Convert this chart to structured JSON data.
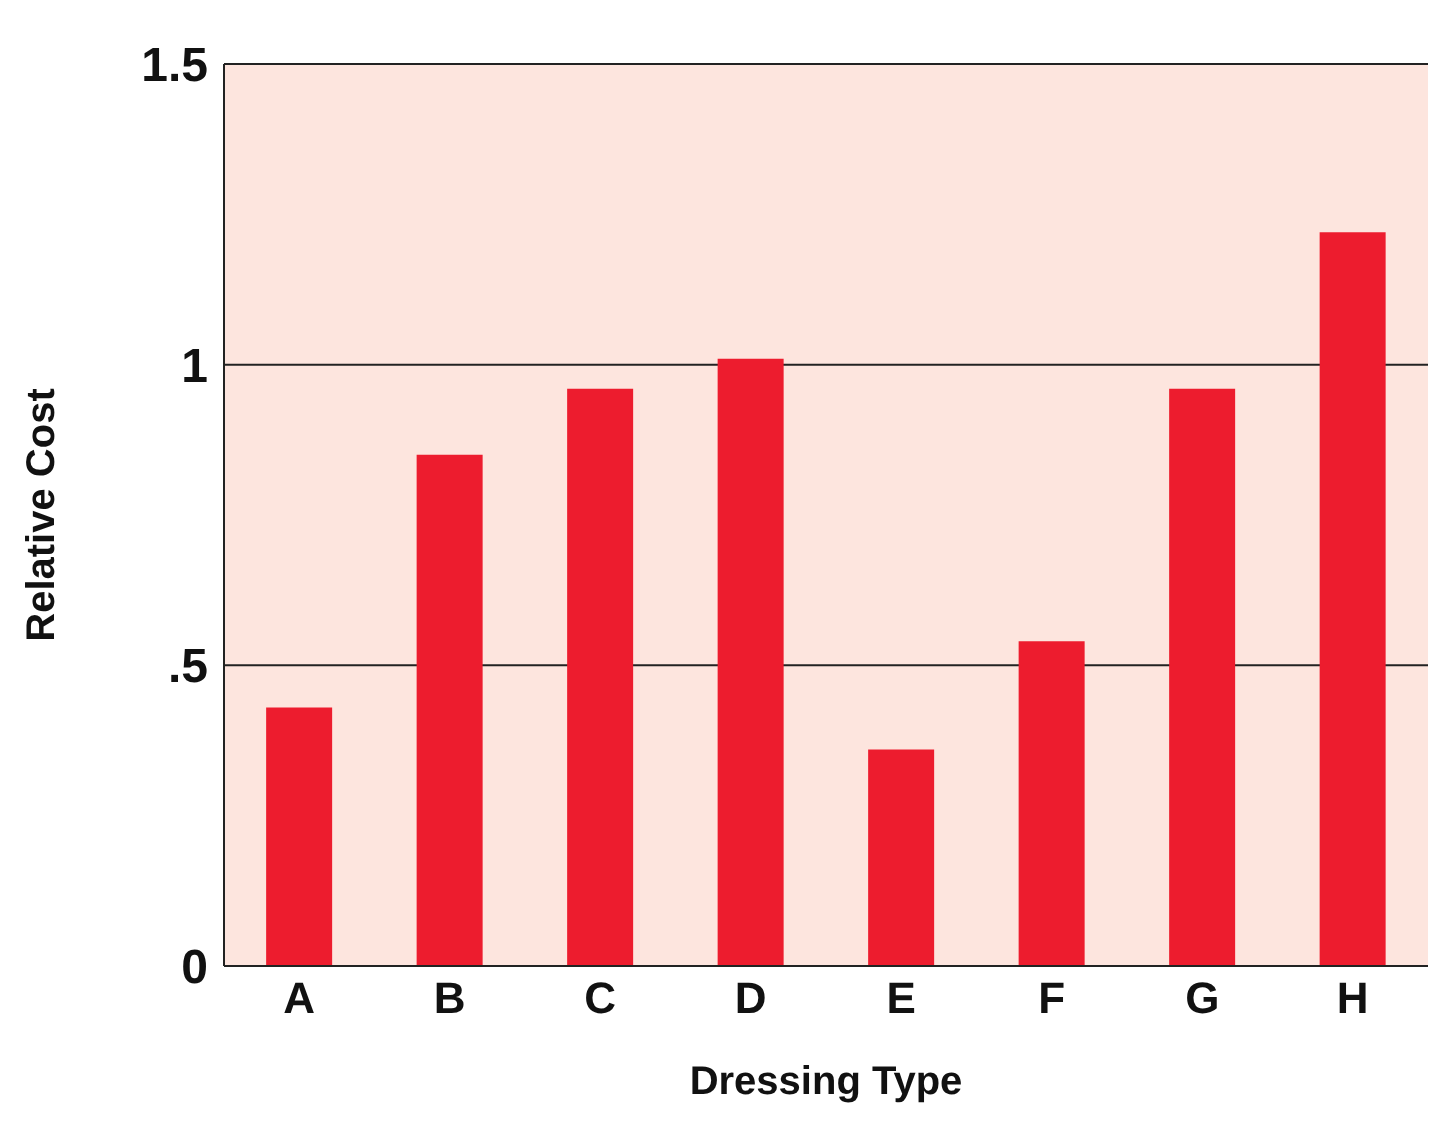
{
  "chart_data": {
    "type": "bar",
    "xlabel": "Dressing Type",
    "ylabel": "Relative Cost",
    "categories": [
      "A",
      "B",
      "C",
      "D",
      "E",
      "F",
      "G",
      "H"
    ],
    "values": [
      0.43,
      0.85,
      0.96,
      1.01,
      0.36,
      0.54,
      0.96,
      1.22
    ],
    "color": "#ed1c2e",
    "ylim": [
      0,
      1.5
    ],
    "yticks": [
      0,
      {
        "value": 0.5,
        "label": ".5"
      },
      1,
      1.5
    ],
    "grid": "y"
  }
}
